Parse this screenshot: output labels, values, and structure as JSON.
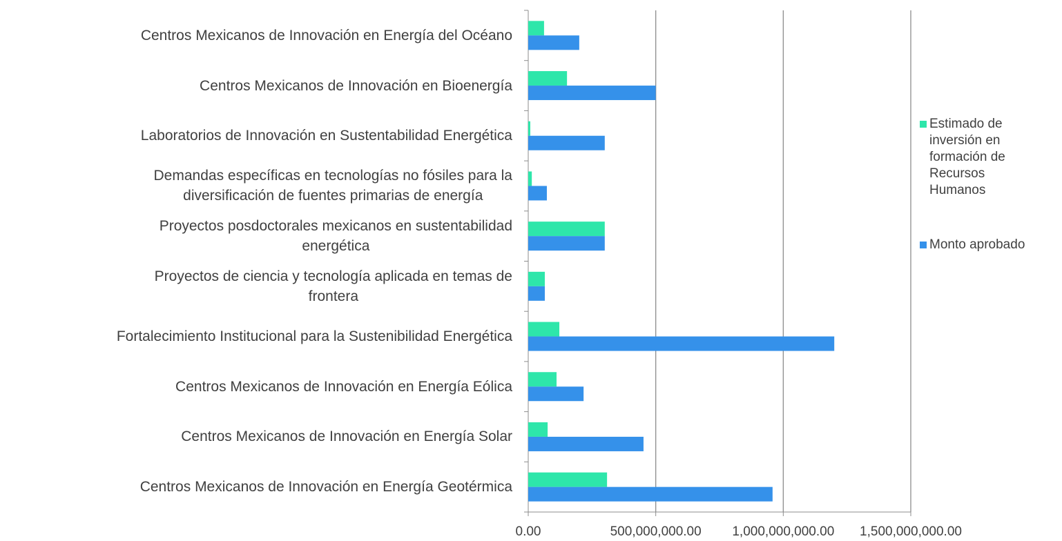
{
  "chart_data": {
    "type": "hbar",
    "categories": [
      "Centros Mexicanos de Innovación en Energía del Océano",
      "Centros Mexicanos de Innovación en Bioenergía",
      "Laboratorios de Innovación en Sustentabilidad Energética",
      "Demandas específicas en tecnologías no fósiles para la\ndiversificación de fuentes primarias de energía",
      "Proyectos posdoctorales mexicanos en sustentabilidad\nenergética",
      "Proyectos de ciencia y tecnología aplicada en temas de\nfrontera",
      "Fortalecimiento Institucional para la Sustenibilidad Energética",
      "Centros Mexicanos de Innovación en Energía Eólica",
      "Centros Mexicanos de Innovación en Energía Solar",
      "Centros Mexicanos de Innovación en Energía Geotérmica"
    ],
    "series": [
      {
        "name": "Estimado de inversión en formación de Recursos Humanos",
        "color": "#2ee6aa",
        "values": [
          62000000,
          152000000,
          8000000,
          14000000,
          300000000,
          65000000,
          122000000,
          111000000,
          76000000,
          309000000
        ]
      },
      {
        "name": "Monto aprobado",
        "color": "#3591ea",
        "values": [
          200000000,
          500000000,
          300000000,
          73000000,
          300000000,
          65000000,
          1200000000,
          217000000,
          452000000,
          958000000
        ]
      }
    ],
    "xlim": [
      0,
      1500000000
    ],
    "xticks": [
      {
        "value": 0,
        "label": "0.00"
      },
      {
        "value": 500000000,
        "label": "500,000,000.00"
      },
      {
        "value": 1000000000,
        "label": "1,000,000,000.00"
      },
      {
        "value": 1500000000,
        "label": "1,500,000,000.00"
      }
    ],
    "grid": true,
    "legend": "right"
  }
}
